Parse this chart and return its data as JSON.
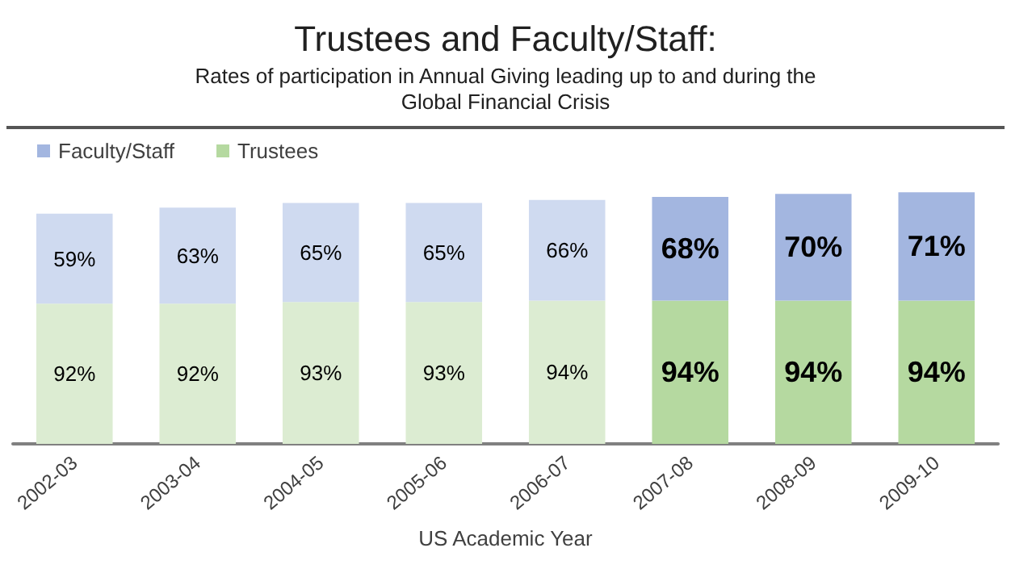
{
  "chart_data": {
    "type": "bar",
    "title": "Trustees and Faculty/Staff:",
    "subtitle": "Rates of participation in Annual Giving leading up to and during the\nGlobal Financial Crisis",
    "xlabel": "US Academic Year",
    "categories": [
      "2002-03",
      "2003-04",
      "2004-05",
      "2005-06",
      "2006-07",
      "2007-08",
      "2008-09",
      "2009-10"
    ],
    "stacked": true,
    "legend": "top left",
    "series": [
      {
        "name": "Trustees",
        "color": "#b5d9a0",
        "colors": [
          "#dcecd2",
          "#dcecd2",
          "#dcecd2",
          "#dcecd2",
          "#dcecd2",
          "#b5d9a0",
          "#b5d9a0",
          "#b5d9a0"
        ],
        "values": [
          92,
          92,
          93,
          93,
          94,
          94,
          94,
          94
        ],
        "value_labels": [
          "92%",
          "92%",
          "93%",
          "93%",
          "94%",
          "94%",
          "94%",
          "94%"
        ]
      },
      {
        "name": "Faculty/Staff",
        "color": "#a3b6e0",
        "colors": [
          "#cfdaf0",
          "#cfdaf0",
          "#cfdaf0",
          "#cfdaf0",
          "#cfdaf0",
          "#a3b6e0",
          "#a3b6e0",
          "#a3b6e0"
        ],
        "values": [
          59,
          63,
          65,
          65,
          66,
          68,
          70,
          71
        ],
        "value_labels": [
          "59%",
          "63%",
          "65%",
          "65%",
          "66%",
          "68%",
          "70%",
          "71%"
        ]
      }
    ]
  }
}
